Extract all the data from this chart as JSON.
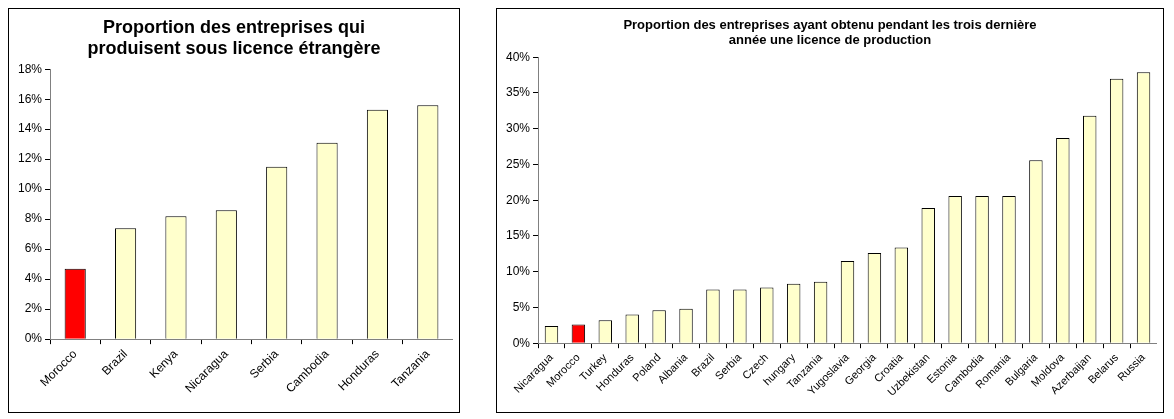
{
  "chart_data": [
    {
      "type": "bar",
      "title": "Proportion des entreprises qui produisent sous licence étrangère",
      "categories": [
        "Morocco",
        "Brazil",
        "Kenya",
        "Nicaragua",
        "Serbia",
        "Cambodia",
        "Honduras",
        "Tanzania"
      ],
      "values": [
        4.7,
        7.4,
        8.2,
        8.6,
        11.5,
        13.1,
        15.3,
        15.6
      ],
      "colors": [
        "#ff0000",
        "#ffffcc",
        "#ffffcc",
        "#ffffcc",
        "#ffffcc",
        "#ffffcc",
        "#ffffcc",
        "#ffffcc"
      ],
      "ylim": [
        0,
        18
      ],
      "yticks": [
        {
          "value": 0,
          "label": "0%"
        },
        {
          "value": 2,
          "label": "2%"
        },
        {
          "value": 4,
          "label": "4%"
        },
        {
          "value": 6,
          "label": "6%"
        },
        {
          "value": 8,
          "label": "8%"
        },
        {
          "value": 10,
          "label": "10%"
        },
        {
          "value": 12,
          "label": "12%"
        },
        {
          "value": 14,
          "label": "14%"
        },
        {
          "value": 16,
          "label": "16%"
        },
        {
          "value": 18,
          "label": "18%"
        }
      ],
      "grid": false,
      "legend": false
    },
    {
      "type": "bar",
      "title": "Proportion des entreprises ayant obtenu  pendant les trois dernière année une licence de production",
      "categories": [
        "Nicaragua",
        "Morocco",
        "Turkey",
        "Honduras",
        "Poland",
        "Albania",
        "Brazil",
        "Serbia",
        "Czech",
        "hungary",
        "Tanzania",
        "Yugoslavia",
        "Georgia",
        "Croatia",
        "Uzbekistan",
        "Estonia",
        "Cambodia",
        "Romania",
        "Bulgaria",
        "Moldova",
        "Azerbaijan",
        "Belarus",
        "Russia"
      ],
      "values": [
        2.4,
        2.6,
        3.2,
        4.0,
        4.6,
        4.8,
        7.5,
        7.5,
        7.8,
        8.3,
        8.6,
        11.5,
        12.6,
        13.4,
        18.9,
        20.6,
        20.6,
        20.6,
        25.6,
        28.7,
        31.8,
        37.0,
        37.9
      ],
      "colors": [
        "#ffffcc",
        "#ff0000",
        "#ffffcc",
        "#ffffcc",
        "#ffffcc",
        "#ffffcc",
        "#ffffcc",
        "#ffffcc",
        "#ffffcc",
        "#ffffcc",
        "#ffffcc",
        "#ffffcc",
        "#ffffcc",
        "#ffffcc",
        "#ffffcc",
        "#ffffcc",
        "#ffffcc",
        "#ffffcc",
        "#ffffcc",
        "#ffffcc",
        "#ffffcc",
        "#ffffcc",
        "#ffffcc"
      ],
      "ylim": [
        0,
        40
      ],
      "yticks": [
        {
          "value": 0,
          "label": "0%"
        },
        {
          "value": 5,
          "label": "5%"
        },
        {
          "value": 10,
          "label": "10%"
        },
        {
          "value": 15,
          "label": "15%"
        },
        {
          "value": 20,
          "label": "20%"
        },
        {
          "value": 25,
          "label": "25%"
        },
        {
          "value": 30,
          "label": "30%"
        },
        {
          "value": 35,
          "label": "35%"
        },
        {
          "value": 40,
          "label": "40%"
        }
      ],
      "grid": false,
      "legend": false
    }
  ]
}
